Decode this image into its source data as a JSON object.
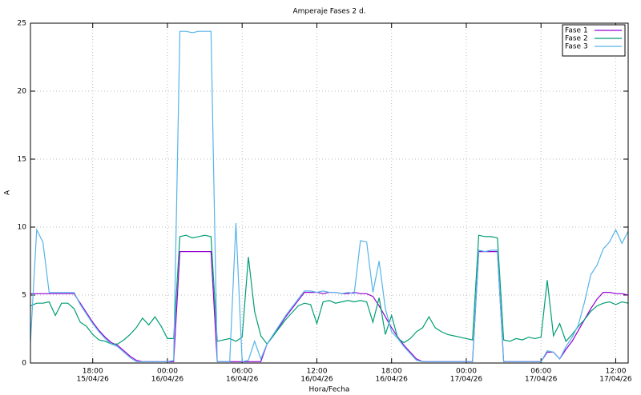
{
  "chart_data": {
    "type": "line",
    "title": "Amperaje Fases 2 d.",
    "x_label": "Hora/Fecha",
    "y_label": "A",
    "grid": true,
    "legend": "top-right",
    "x": [
      "15/04/26 13:00",
      "15/04/26 13:30",
      "15/04/26 14:00",
      "15/04/26 14:30",
      "15/04/26 15:00",
      "15/04/26 15:30",
      "15/04/26 16:00",
      "15/04/26 16:30",
      "15/04/26 17:00",
      "15/04/26 17:30",
      "15/04/26 18:00",
      "15/04/26 18:30",
      "15/04/26 19:00",
      "15/04/26 19:30",
      "15/04/26 20:00",
      "15/04/26 20:30",
      "15/04/26 21:00",
      "15/04/26 21:30",
      "15/04/26 22:00",
      "15/04/26 22:30",
      "15/04/26 23:00",
      "15/04/26 23:30",
      "16/04/26 00:00",
      "16/04/26 00:30",
      "16/04/26 01:00",
      "16/04/26 01:30",
      "16/04/26 02:00",
      "16/04/26 02:30",
      "16/04/26 03:00",
      "16/04/26 03:30",
      "16/04/26 04:00",
      "16/04/26 04:30",
      "16/04/26 05:00",
      "16/04/26 05:30",
      "16/04/26 06:00",
      "16/04/26 06:30",
      "16/04/26 07:00",
      "16/04/26 07:30",
      "16/04/26 08:00",
      "16/04/26 08:30",
      "16/04/26 09:00",
      "16/04/26 09:30",
      "16/04/26 10:00",
      "16/04/26 10:30",
      "16/04/26 11:00",
      "16/04/26 11:30",
      "16/04/26 12:00",
      "16/04/26 12:30",
      "16/04/26 13:00",
      "16/04/26 13:30",
      "16/04/26 14:00",
      "16/04/26 14:30",
      "16/04/26 15:00",
      "16/04/26 15:30",
      "16/04/26 16:00",
      "16/04/26 16:30",
      "16/04/26 17:00",
      "16/04/26 17:30",
      "16/04/26 18:00",
      "16/04/26 18:30",
      "16/04/26 19:00",
      "16/04/26 19:30",
      "16/04/26 20:00",
      "16/04/26 20:30",
      "16/04/26 21:00",
      "16/04/26 21:30",
      "16/04/26 22:00",
      "16/04/26 22:30",
      "16/04/26 23:00",
      "16/04/26 23:30",
      "17/04/26 00:00",
      "17/04/26 00:30",
      "17/04/26 01:00",
      "17/04/26 01:30",
      "17/04/26 02:00",
      "17/04/26 02:30",
      "17/04/26 03:00",
      "17/04/26 03:30",
      "17/04/26 04:00",
      "17/04/26 04:30",
      "17/04/26 05:00",
      "17/04/26 05:30",
      "17/04/26 06:00",
      "17/04/26 06:30",
      "17/04/26 07:00",
      "17/04/26 07:30",
      "17/04/26 08:00",
      "17/04/26 08:30",
      "17/04/26 09:00",
      "17/04/26 09:30",
      "17/04/26 10:00",
      "17/04/26 10:30",
      "17/04/26 11:00",
      "17/04/26 11:30",
      "17/04/26 12:00",
      "17/04/26 12:30",
      "17/04/26 13:00"
    ],
    "series": [
      {
        "name": "Fase 1",
        "color": "#9400d3",
        "values": [
          5.1,
          5.1,
          5.1,
          5.1,
          5.1,
          5.1,
          5.1,
          5.1,
          4.4,
          3.7,
          3.0,
          2.4,
          1.9,
          1.5,
          1.3,
          0.9,
          0.5,
          0.2,
          0.1,
          0.1,
          0.1,
          0.1,
          0.1,
          0.1,
          8.2,
          8.2,
          8.2,
          8.2,
          8.2,
          8.2,
          0.1,
          0.1,
          0.1,
          0.1,
          0.1,
          0.1,
          0.1,
          0.1,
          1.4,
          2.0,
          2.7,
          3.4,
          4.0,
          4.6,
          5.2,
          5.2,
          5.2,
          5.1,
          5.2,
          5.2,
          5.1,
          5.1,
          5.2,
          5.1,
          5.1,
          4.9,
          4.2,
          3.4,
          2.6,
          1.9,
          1.3,
          0.8,
          0.3,
          0.1,
          0.1,
          0.1,
          0.1,
          0.1,
          0.1,
          0.1,
          0.1,
          0.1,
          8.2,
          8.2,
          8.2,
          8.2,
          0.1,
          0.1,
          0.1,
          0.1,
          0.1,
          0.1,
          0.1,
          0.8,
          0.8,
          0.3,
          1.0,
          1.6,
          2.4,
          3.2,
          4.0,
          4.7,
          5.2,
          5.2,
          5.1,
          5.1,
          5.0
        ]
      },
      {
        "name": "Fase 2",
        "color": "#009e73",
        "values": [
          4.2,
          4.4,
          4.4,
          4.5,
          3.5,
          4.4,
          4.4,
          4.0,
          3.0,
          2.7,
          2.1,
          1.7,
          1.6,
          1.4,
          1.4,
          1.7,
          2.1,
          2.6,
          3.3,
          2.8,
          3.4,
          2.7,
          1.8,
          1.8,
          9.3,
          9.4,
          9.2,
          9.3,
          9.4,
          9.3,
          1.6,
          1.7,
          1.8,
          1.6,
          1.9,
          7.8,
          3.8,
          2.0,
          1.4,
          2.0,
          2.6,
          3.2,
          3.7,
          4.2,
          4.4,
          4.3,
          2.9,
          4.5,
          4.6,
          4.4,
          4.5,
          4.6,
          4.5,
          4.6,
          4.5,
          3.0,
          4.8,
          2.1,
          3.5,
          1.8,
          1.5,
          1.8,
          2.3,
          2.6,
          3.4,
          2.6,
          2.3,
          2.1,
          2.0,
          1.9,
          1.8,
          1.7,
          9.4,
          9.3,
          9.3,
          9.2,
          1.7,
          1.6,
          1.8,
          1.7,
          1.9,
          1.8,
          1.9,
          6.1,
          2.0,
          2.9,
          1.6,
          2.1,
          2.7,
          3.2,
          3.8,
          4.2,
          4.4,
          4.5,
          4.3,
          4.5,
          4.4
        ]
      },
      {
        "name": "Fase 3",
        "color": "#56b4e9",
        "values": [
          1.5,
          9.8,
          8.9,
          5.2,
          5.2,
          5.2,
          5.2,
          5.2,
          4.3,
          3.6,
          2.9,
          2.3,
          1.8,
          1.4,
          1.2,
          0.8,
          0.4,
          0.1,
          0.1,
          0.1,
          0.1,
          0.1,
          0.1,
          0.2,
          24.4,
          24.4,
          24.3,
          24.4,
          24.4,
          24.4,
          0.1,
          0.1,
          0.1,
          10.3,
          0.1,
          0.2,
          1.6,
          0.3,
          1.4,
          2.1,
          2.8,
          3.5,
          4.1,
          4.7,
          5.3,
          5.3,
          5.2,
          5.3,
          5.2,
          5.2,
          5.1,
          5.2,
          5.1,
          9.0,
          8.9,
          5.2,
          7.5,
          4.0,
          2.3,
          1.8,
          1.2,
          0.7,
          0.2,
          0.1,
          0.1,
          0.1,
          0.1,
          0.1,
          0.1,
          0.1,
          0.1,
          0.1,
          8.3,
          8.2,
          8.3,
          8.3,
          0.1,
          0.1,
          0.1,
          0.1,
          0.1,
          0.1,
          0.1,
          0.9,
          0.8,
          0.3,
          1.2,
          1.9,
          2.8,
          4.5,
          6.5,
          7.2,
          8.4,
          8.9,
          9.8,
          8.8,
          9.7
        ]
      }
    ],
    "xlim": [
      "15/04/26 13:00",
      "17/04/26 13:00"
    ],
    "xticks": [
      {
        "value": "15/04/26 18:00",
        "label": [
          "18:00",
          "15/04/26"
        ]
      },
      {
        "value": "16/04/26 00:00",
        "label": [
          "00:00",
          "16/04/26"
        ]
      },
      {
        "value": "16/04/26 06:00",
        "label": [
          "06:00",
          "16/04/26"
        ]
      },
      {
        "value": "16/04/26 12:00",
        "label": [
          "12:00",
          "16/04/26"
        ]
      },
      {
        "value": "16/04/26 18:00",
        "label": [
          "18:00",
          "16/04/26"
        ]
      },
      {
        "value": "17/04/26 00:00",
        "label": [
          "00:00",
          "17/04/26"
        ]
      },
      {
        "value": "17/04/26 06:00",
        "label": [
          "06:00",
          "17/04/26"
        ]
      },
      {
        "value": "17/04/26 12:00",
        "label": [
          "12:00",
          "17/04/26"
        ]
      }
    ],
    "ylim": [
      0,
      25
    ],
    "yticks": [
      0,
      5,
      10,
      15,
      20,
      25
    ]
  }
}
